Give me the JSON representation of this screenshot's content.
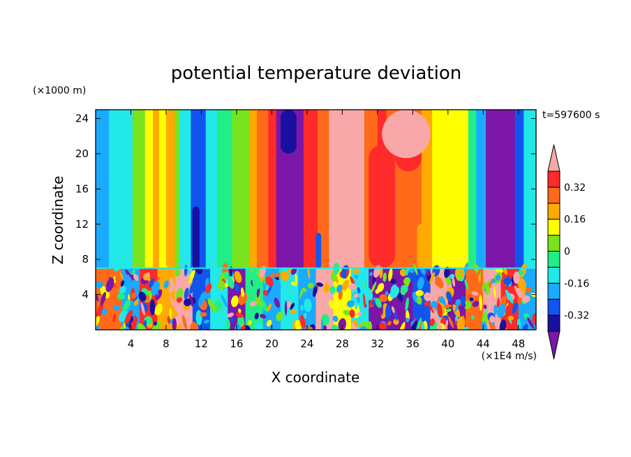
{
  "chart_data": {
    "type": "heatmap",
    "title": "potential temperature deviation",
    "xlabel": "X coordinate",
    "ylabel": "Z coordinate",
    "x_units": "(×1E4 m/s)",
    "y_units": "(×1000 m)",
    "time_label": "t=597600 s",
    "xlim": [
      0,
      50
    ],
    "ylim": [
      0,
      25
    ],
    "x_ticks": [
      4,
      8,
      12,
      16,
      20,
      24,
      28,
      32,
      36,
      40,
      44,
      48
    ],
    "y_ticks": [
      4,
      8,
      12,
      16,
      20,
      24
    ],
    "colorbar": {
      "levels": [
        -0.4,
        -0.32,
        -0.24,
        -0.16,
        -0.08,
        0,
        0.08,
        0.16,
        0.24,
        0.32,
        0.4
      ],
      "tick_labels": [
        "0.32",
        "0.16",
        "0",
        "-0.16",
        "-0.32"
      ],
      "tick_values": [
        0.32,
        0.16,
        0,
        -0.16,
        -0.32
      ],
      "colors": [
        "#7b16a8",
        "#1a10a0",
        "#1155ee",
        "#1aaaff",
        "#22e8e8",
        "#22ee88",
        "#77e41d",
        "#ffff00",
        "#ffaa00",
        "#ff6a1a",
        "#ff2a2a",
        "#f8a8a8"
      ],
      "extend": "both"
    },
    "upper_layer_columns": [
      {
        "x": [
          0,
          1.5
        ],
        "c": "#1aaaff"
      },
      {
        "x": [
          1.5,
          4.2
        ],
        "c": "#22e8e8"
      },
      {
        "x": [
          4.2,
          5.6
        ],
        "c": "#77e41d"
      },
      {
        "x": [
          5.6,
          6.5
        ],
        "c": "#ffff00"
      },
      {
        "x": [
          6.5,
          7.2
        ],
        "c": "#ffaa00"
      },
      {
        "x": [
          7.2,
          8.2
        ],
        "c": "#ffff00"
      },
      {
        "x": [
          8.2,
          9.5
        ],
        "c": "#77e41d"
      },
      {
        "x": [
          9.5,
          10.8
        ],
        "c": "#22e8e8"
      },
      {
        "x": [
          10.8,
          12.5
        ],
        "c": "#1155ee"
      },
      {
        "x": [
          12.5,
          13.8
        ],
        "c": "#22e8e8"
      },
      {
        "x": [
          13.8,
          15.5
        ],
        "c": "#22ee88"
      },
      {
        "x": [
          15.5,
          17.5
        ],
        "c": "#77e41d"
      },
      {
        "x": [
          17.5,
          18.3
        ],
        "c": "#ffaa00"
      },
      {
        "x": [
          18.3,
          19.6
        ],
        "c": "#ff6a1a"
      },
      {
        "x": [
          19.6,
          20.5
        ],
        "c": "#ff2a2a"
      },
      {
        "x": [
          20.5,
          23.6
        ],
        "c": "#7b16a8"
      },
      {
        "x": [
          23.6,
          25.2
        ],
        "c": "#ff2a2a"
      },
      {
        "x": [
          25.2,
          26.5
        ],
        "c": "#ff6a1a"
      },
      {
        "x": [
          26.5,
          30.5
        ],
        "c": "#f8a8a8"
      },
      {
        "x": [
          30.5,
          32.0
        ],
        "c": "#ff6a1a"
      },
      {
        "x": [
          32.0,
          33.0
        ],
        "c": "#ff2a2a"
      },
      {
        "x": [
          33.0,
          37.0
        ],
        "c": "#ff6a1a"
      },
      {
        "x": [
          37.0,
          38.2
        ],
        "c": "#ffaa00"
      },
      {
        "x": [
          38.2,
          42.3
        ],
        "c": "#ffff00"
      },
      {
        "x": [
          42.3,
          43.2
        ],
        "c": "#22ee88"
      },
      {
        "x": [
          43.2,
          44.3
        ],
        "c": "#1aaaff"
      },
      {
        "x": [
          44.3,
          47.6
        ],
        "c": "#7b16a8"
      },
      {
        "x": [
          47.6,
          48.6
        ],
        "c": "#1155ee"
      },
      {
        "x": [
          48.6,
          50
        ],
        "c": "#22e8e8"
      }
    ],
    "upper_layer_patches": [
      {
        "x": [
          8.0,
          9.0
        ],
        "z": [
          7,
          25
        ],
        "c": "#ffaa00"
      },
      {
        "x": [
          31.0,
          34.0
        ],
        "z": [
          7,
          21
        ],
        "c": "#ff2a2a"
      },
      {
        "x": [
          34.0,
          37.0
        ],
        "z": [
          18,
          25
        ],
        "c": "#ff2a2a"
      },
      {
        "x": [
          32.5,
          38.0
        ],
        "z": [
          19.5,
          25
        ],
        "c": "#f8a8a8"
      },
      {
        "x": [
          11.0,
          11.8
        ],
        "z": [
          7,
          14
        ],
        "c": "#1a10a0"
      },
      {
        "x": [
          25.0,
          25.6
        ],
        "z": [
          7,
          11
        ],
        "c": "#1155ee"
      },
      {
        "x": [
          36.5,
          37.5
        ],
        "z": [
          7,
          12
        ],
        "c": "#ffaa00"
      },
      {
        "x": [
          21.0,
          22.8
        ],
        "z": [
          20,
          25
        ],
        "c": "#1a10a0"
      }
    ],
    "lower_layer": {
      "z_range": [
        0,
        7
      ],
      "segments": [
        {
          "x": [
            0,
            3
          ],
          "c": "#ff6a1a"
        },
        {
          "x": [
            3,
            5
          ],
          "c": "#1aaaff"
        },
        {
          "x": [
            5,
            7
          ],
          "c": "#ff2a2a"
        },
        {
          "x": [
            7,
            9
          ],
          "c": "#ffaa00"
        },
        {
          "x": [
            9,
            11
          ],
          "c": "#f8a8a8"
        },
        {
          "x": [
            11,
            13
          ],
          "c": "#1155ee"
        },
        {
          "x": [
            13,
            15
          ],
          "c": "#22e8e8"
        },
        {
          "x": [
            15,
            17
          ],
          "c": "#7b16a8"
        },
        {
          "x": [
            17,
            19
          ],
          "c": "#22ee88"
        },
        {
          "x": [
            19,
            21
          ],
          "c": "#1aaaff"
        },
        {
          "x": [
            21,
            23
          ],
          "c": "#22e8e8"
        },
        {
          "x": [
            23,
            25
          ],
          "c": "#1aaaff"
        },
        {
          "x": [
            25,
            27
          ],
          "c": "#f8a8a8"
        },
        {
          "x": [
            27,
            29
          ],
          "c": "#ffff00"
        },
        {
          "x": [
            29,
            31
          ],
          "c": "#22e8e8"
        },
        {
          "x": [
            31,
            36
          ],
          "c": "#7b16a8"
        },
        {
          "x": [
            36,
            38
          ],
          "c": "#1155ee"
        },
        {
          "x": [
            38,
            40
          ],
          "c": "#f8a8a8"
        },
        {
          "x": [
            40,
            42
          ],
          "c": "#7b16a8"
        },
        {
          "x": [
            42,
            44
          ],
          "c": "#ff6a1a"
        },
        {
          "x": [
            44,
            46
          ],
          "c": "#f8a8a8"
        },
        {
          "x": [
            46,
            48
          ],
          "c": "#ff2a2a"
        },
        {
          "x": [
            48,
            50
          ],
          "c": "#1aaaff"
        }
      ]
    }
  }
}
